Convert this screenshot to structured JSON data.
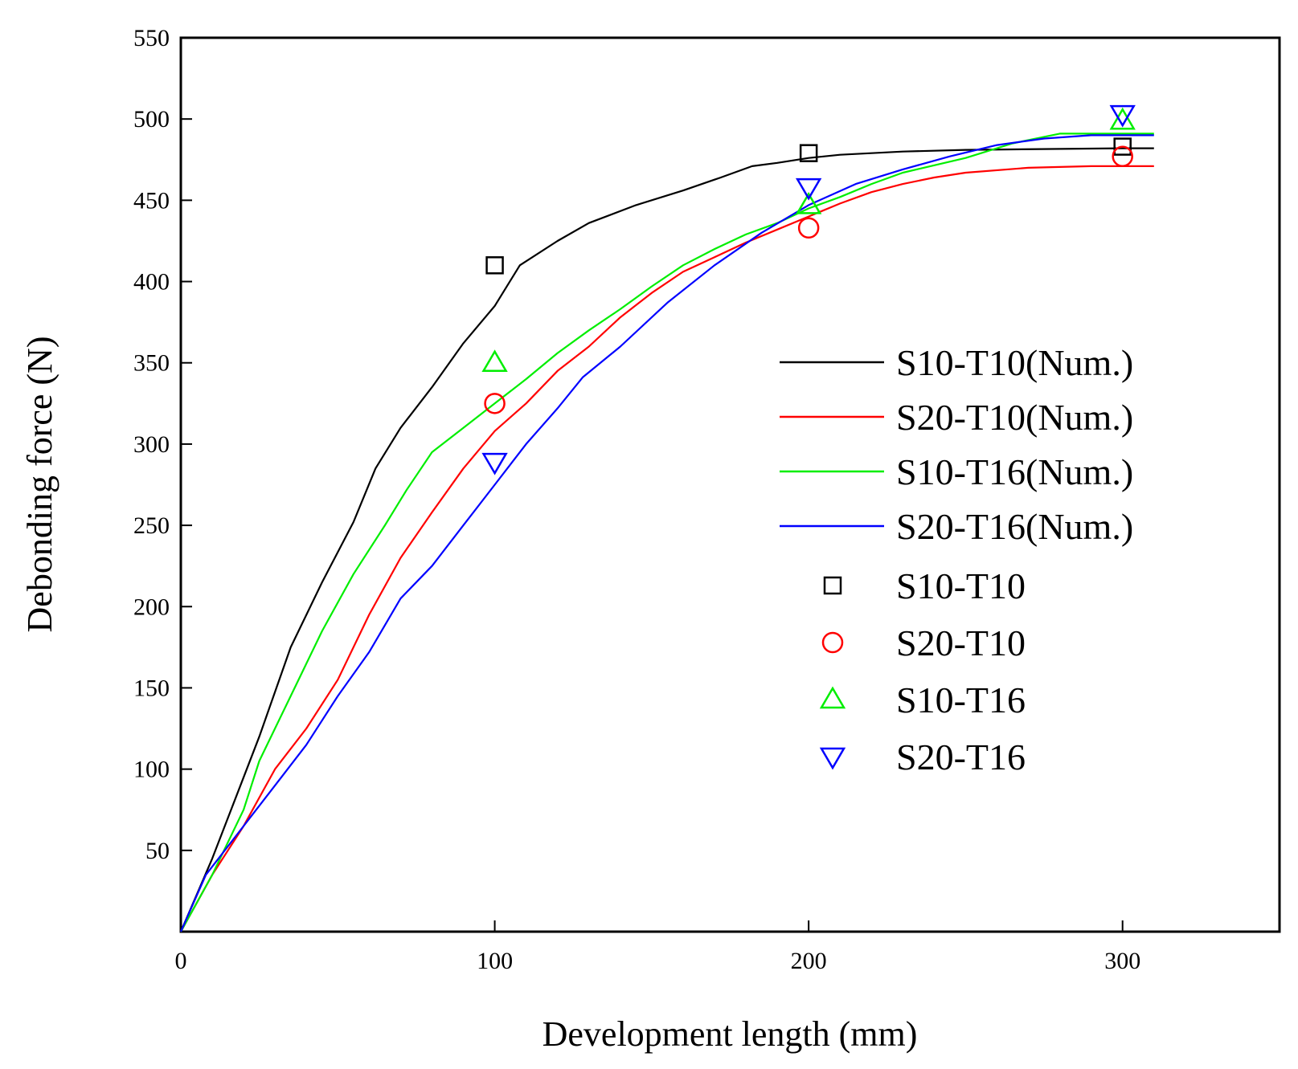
{
  "chart_data": {
    "type": "line",
    "title": "",
    "xlabel": "Development length (mm)",
    "ylabel": "Debonding force (N)",
    "xlim": [
      0,
      350
    ],
    "ylim": [
      0,
      550
    ],
    "xticks": [
      0,
      100,
      200,
      300
    ],
    "yticks": [
      50,
      100,
      150,
      200,
      250,
      300,
      350,
      400,
      450,
      500,
      550
    ],
    "grid": false,
    "legend_position": "center-right",
    "series": [
      {
        "name": "S10-T10(Num.)",
        "kind": "line",
        "color": "#000000",
        "points": [
          [
            0,
            0
          ],
          [
            10,
            45
          ],
          [
            20,
            95
          ],
          [
            25,
            120
          ],
          [
            35,
            175
          ],
          [
            45,
            215
          ],
          [
            55,
            252
          ],
          [
            62,
            285
          ],
          [
            70,
            310
          ],
          [
            80,
            335
          ],
          [
            90,
            362
          ],
          [
            100,
            385
          ],
          [
            108,
            410
          ],
          [
            120,
            425
          ],
          [
            130,
            436
          ],
          [
            145,
            447
          ],
          [
            160,
            456
          ],
          [
            172,
            464
          ],
          [
            182,
            471
          ],
          [
            190,
            473
          ],
          [
            200,
            476
          ],
          [
            210,
            478
          ],
          [
            230,
            480
          ],
          [
            250,
            481
          ],
          [
            300,
            482
          ],
          [
            310,
            482
          ]
        ]
      },
      {
        "name": "S20-T10(Num.)",
        "kind": "line",
        "color": "#ff0000",
        "points": [
          [
            0,
            0
          ],
          [
            10,
            35
          ],
          [
            20,
            65
          ],
          [
            30,
            100
          ],
          [
            40,
            125
          ],
          [
            50,
            155
          ],
          [
            60,
            195
          ],
          [
            70,
            230
          ],
          [
            80,
            258
          ],
          [
            90,
            285
          ],
          [
            100,
            308
          ],
          [
            110,
            325
          ],
          [
            120,
            345
          ],
          [
            130,
            360
          ],
          [
            140,
            378
          ],
          [
            150,
            393
          ],
          [
            160,
            406
          ],
          [
            170,
            415
          ],
          [
            180,
            424
          ],
          [
            190,
            432
          ],
          [
            200,
            440
          ],
          [
            210,
            448
          ],
          [
            220,
            455
          ],
          [
            230,
            460
          ],
          [
            240,
            464
          ],
          [
            250,
            467
          ],
          [
            270,
            470
          ],
          [
            290,
            471
          ],
          [
            310,
            471
          ]
        ]
      },
      {
        "name": "S10-T16(Num.)",
        "kind": "line",
        "color": "#00ee00",
        "points": [
          [
            0,
            0
          ],
          [
            10,
            35
          ],
          [
            20,
            75
          ],
          [
            25,
            105
          ],
          [
            35,
            145
          ],
          [
            45,
            185
          ],
          [
            55,
            220
          ],
          [
            65,
            250
          ],
          [
            72,
            272
          ],
          [
            80,
            295
          ],
          [
            90,
            310
          ],
          [
            100,
            325
          ],
          [
            110,
            340
          ],
          [
            120,
            356
          ],
          [
            130,
            370
          ],
          [
            140,
            383
          ],
          [
            150,
            397
          ],
          [
            160,
            410
          ],
          [
            170,
            420
          ],
          [
            180,
            429
          ],
          [
            190,
            436
          ],
          [
            200,
            445
          ],
          [
            210,
            452
          ],
          [
            220,
            460
          ],
          [
            230,
            467
          ],
          [
            250,
            476
          ],
          [
            265,
            485
          ],
          [
            280,
            491
          ],
          [
            300,
            491
          ],
          [
            310,
            491
          ]
        ]
      },
      {
        "name": "S20-T16(Num.)",
        "kind": "line",
        "color": "#0000ff",
        "points": [
          [
            0,
            0
          ],
          [
            8,
            35
          ],
          [
            20,
            65
          ],
          [
            30,
            90
          ],
          [
            40,
            115
          ],
          [
            50,
            145
          ],
          [
            60,
            172
          ],
          [
            70,
            205
          ],
          [
            80,
            225
          ],
          [
            90,
            250
          ],
          [
            100,
            275
          ],
          [
            110,
            300
          ],
          [
            120,
            322
          ],
          [
            128,
            341
          ],
          [
            140,
            360
          ],
          [
            155,
            387
          ],
          [
            170,
            410
          ],
          [
            185,
            430
          ],
          [
            200,
            447
          ],
          [
            215,
            460
          ],
          [
            230,
            469
          ],
          [
            245,
            477
          ],
          [
            260,
            484
          ],
          [
            275,
            488
          ],
          [
            290,
            490
          ],
          [
            310,
            490
          ]
        ]
      },
      {
        "name": "S10-T10",
        "kind": "marker",
        "marker": "square",
        "color": "#000000",
        "points": [
          [
            100,
            410
          ],
          [
            200,
            479
          ],
          [
            300,
            483
          ]
        ]
      },
      {
        "name": "S20-T10",
        "kind": "marker",
        "marker": "circle",
        "color": "#ff0000",
        "points": [
          [
            100,
            325
          ],
          [
            200,
            433
          ],
          [
            300,
            477
          ]
        ]
      },
      {
        "name": "S10-T16",
        "kind": "marker",
        "marker": "triangle-up",
        "color": "#00ee00",
        "points": [
          [
            100,
            350
          ],
          [
            200,
            447
          ],
          [
            300,
            499
          ]
        ]
      },
      {
        "name": "S20-T16",
        "kind": "marker",
        "marker": "triangle-down",
        "color": "#0000ff",
        "points": [
          [
            100,
            289
          ],
          [
            200,
            458
          ],
          [
            300,
            503
          ]
        ]
      }
    ]
  }
}
